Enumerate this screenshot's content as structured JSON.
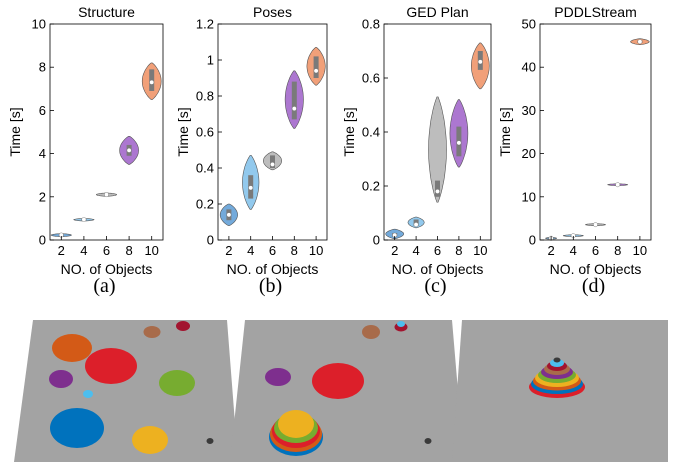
{
  "colors": {
    "violin": [
      "#5b9bd5",
      "#7fbfea",
      "#b2b2b2",
      "#9e5fc8",
      "#ef8f61",
      "#e06276"
    ],
    "median_marker": "#ffffff",
    "iqr_box": "#7a7a7a",
    "table": "#a3a3a3"
  },
  "panel_captions": [
    "(a)",
    "(b)",
    "(c)",
    "(d)"
  ],
  "chart_data": [
    {
      "type": "violin",
      "title": "Structure",
      "xlabel": "NO. of Objects",
      "ylabel": "Time [s]",
      "categories": [
        "2",
        "4",
        "6",
        "8",
        "10"
      ],
      "ylim": [
        0,
        10
      ],
      "yticks": [
        "0",
        "2",
        "4",
        "6",
        "8",
        "10"
      ],
      "grid": false,
      "violins": [
        {
          "min": 0.15,
          "max": 0.3,
          "q1": 0.2,
          "q3": 0.26,
          "median": 0.23,
          "width": 0.45
        },
        {
          "min": 0.88,
          "max": 1.0,
          "q1": 0.92,
          "q3": 0.97,
          "median": 0.95,
          "width": 0.45
        },
        {
          "min": 2.02,
          "max": 2.18,
          "q1": 2.07,
          "q3": 2.13,
          "median": 2.1,
          "width": 0.45
        },
        {
          "min": 3.5,
          "max": 4.8,
          "q1": 3.9,
          "q3": 4.4,
          "median": 4.15,
          "width": 0.42
        },
        {
          "min": 6.5,
          "max": 8.2,
          "q1": 6.9,
          "q3": 7.9,
          "median": 7.3,
          "width": 0.42
        }
      ],
      "caption": "(a)"
    },
    {
      "type": "violin",
      "title": "Poses",
      "xlabel": "NO. of Objects",
      "ylabel": "Time [s]",
      "categories": [
        "2",
        "4",
        "6",
        "8",
        "10"
      ],
      "ylim": [
        0,
        1.2
      ],
      "yticks": [
        "0",
        "0.2",
        "0.4",
        "0.6",
        "0.8",
        "1",
        "1.2"
      ],
      "grid": false,
      "violins": [
        {
          "min": 0.08,
          "max": 0.2,
          "q1": 0.11,
          "q3": 0.17,
          "median": 0.14,
          "width": 0.4
        },
        {
          "min": 0.17,
          "max": 0.47,
          "q1": 0.23,
          "q3": 0.36,
          "median": 0.29,
          "width": 0.38
        },
        {
          "min": 0.39,
          "max": 0.49,
          "q1": 0.4,
          "q3": 0.47,
          "median": 0.42,
          "width": 0.42
        },
        {
          "min": 0.62,
          "max": 0.94,
          "q1": 0.67,
          "q3": 0.88,
          "median": 0.73,
          "width": 0.42
        },
        {
          "min": 0.86,
          "max": 1.07,
          "q1": 0.9,
          "q3": 1.02,
          "median": 0.94,
          "width": 0.42
        }
      ],
      "caption": "(b)"
    },
    {
      "type": "violin",
      "title": "GED Plan",
      "xlabel": "NO. of Objects",
      "ylabel": "Time [s]",
      "categories": [
        "2",
        "4",
        "6",
        "8",
        "10"
      ],
      "ylim": [
        0,
        0.8
      ],
      "yticks": [
        "0",
        "0.2",
        "0.4",
        "0.6",
        "0.8"
      ],
      "grid": false,
      "violins": [
        {
          "min": 0.005,
          "max": 0.04,
          "q1": 0.012,
          "q3": 0.026,
          "median": 0.018,
          "width": 0.42
        },
        {
          "min": 0.045,
          "max": 0.085,
          "q1": 0.052,
          "q3": 0.076,
          "median": 0.057,
          "width": 0.38
        },
        {
          "min": 0.14,
          "max": 0.53,
          "q1": 0.16,
          "q3": 0.22,
          "median": 0.18,
          "width": 0.42
        },
        {
          "min": 0.27,
          "max": 0.52,
          "q1": 0.31,
          "q3": 0.42,
          "median": 0.36,
          "width": 0.42
        },
        {
          "min": 0.56,
          "max": 0.73,
          "q1": 0.63,
          "q3": 0.7,
          "median": 0.66,
          "width": 0.42
        }
      ],
      "caption": "(c)"
    },
    {
      "type": "violin",
      "title": "PDDLStream",
      "xlabel": "NO. of Objects",
      "ylabel": "Time [s]",
      "categories": [
        "2",
        "4",
        "6",
        "8",
        "10"
      ],
      "ylim": [
        0,
        50
      ],
      "yticks": [
        "0",
        "10",
        "20",
        "30",
        "40",
        "50"
      ],
      "grid": false,
      "violins": [
        {
          "min": 0.3,
          "max": 0.5,
          "q1": 0.35,
          "q3": 0.45,
          "median": 0.4,
          "width": 0.25
        },
        {
          "min": 0.8,
          "max": 1.2,
          "q1": 0.9,
          "q3": 1.1,
          "median": 1.0,
          "width": 0.45
        },
        {
          "min": 3.3,
          "max": 3.8,
          "q1": 3.45,
          "q3": 3.65,
          "median": 3.55,
          "width": 0.45
        },
        {
          "min": 12.6,
          "max": 13.0,
          "q1": 12.7,
          "q3": 12.9,
          "median": 12.8,
          "width": 0.45
        },
        {
          "min": 45.2,
          "max": 46.6,
          "q1": 45.6,
          "q3": 46.2,
          "median": 45.9,
          "width": 0.42
        }
      ],
      "caption": "(d)"
    }
  ],
  "scenes": [
    {
      "name": "scattered-objects",
      "discs": [
        {
          "color": "#d35a17",
          "size": "large"
        },
        {
          "color": "#dc1f2a",
          "size": "large"
        },
        {
          "color": "#a86b4a",
          "size": "small"
        },
        {
          "color": "#a2142f",
          "size": "small"
        },
        {
          "color": "#7e2f8e",
          "size": "medium"
        },
        {
          "color": "#4dbeee",
          "size": "tiny"
        },
        {
          "color": "#77ac30",
          "size": "medium"
        },
        {
          "color": "#0072bd",
          "size": "large"
        },
        {
          "color": "#edb120",
          "size": "medium"
        },
        {
          "color": "#3a3a3a",
          "size": "tiny"
        }
      ]
    },
    {
      "name": "partial-stack"
    },
    {
      "name": "full-stack"
    }
  ]
}
